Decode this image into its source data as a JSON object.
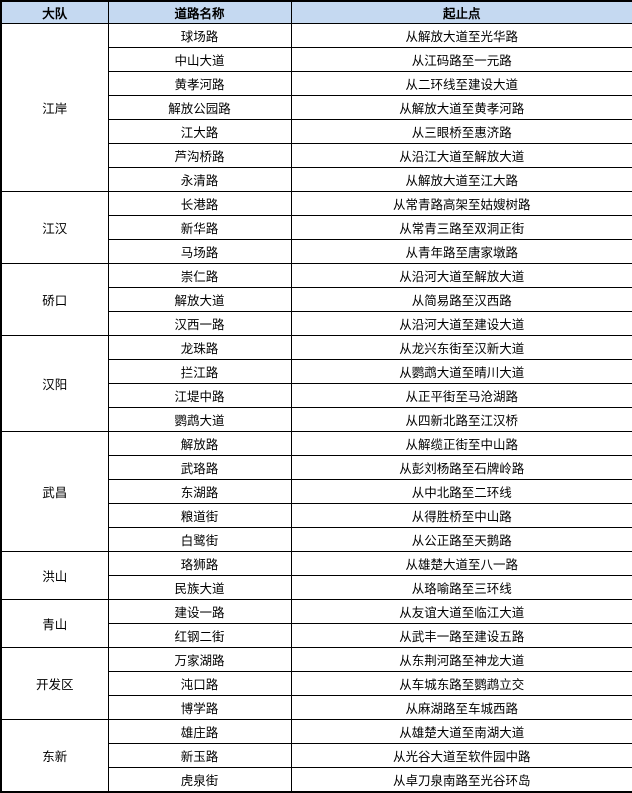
{
  "table": {
    "headers": [
      "大队",
      "道路名称",
      "起止点"
    ],
    "header_bg": "#c5d9f1",
    "groups": [
      {
        "brigade": "江岸",
        "rows": [
          {
            "road": "球场路",
            "range": "从解放大道至光华路"
          },
          {
            "road": "中山大道",
            "range": "从江码路至一元路"
          },
          {
            "road": "黄孝河路",
            "range": "从二环线至建设大道"
          },
          {
            "road": "解放公园路",
            "range": "从解放大道至黄孝河路"
          },
          {
            "road": "江大路",
            "range": "从三眼桥至惠济路"
          },
          {
            "road": "芦沟桥路",
            "range": "从沿江大道至解放大道"
          },
          {
            "road": "永清路",
            "range": "从解放大道至江大路"
          }
        ]
      },
      {
        "brigade": "江汉",
        "rows": [
          {
            "road": "长港路",
            "range": "从常青路高架至姑嫂树路"
          },
          {
            "road": "新华路",
            "range": "从常青三路至双洞正街"
          },
          {
            "road": "马场路",
            "range": "从青年路至唐家墩路"
          }
        ]
      },
      {
        "brigade": "硚口",
        "rows": [
          {
            "road": "崇仁路",
            "range": "从沿河大道至解放大道"
          },
          {
            "road": "解放大道",
            "range": "从简易路至汉西路"
          },
          {
            "road": "汉西一路",
            "range": "从沿河大道至建设大道"
          }
        ]
      },
      {
        "brigade": "汉阳",
        "rows": [
          {
            "road": "龙珠路",
            "range": "从龙兴东街至汉新大道"
          },
          {
            "road": "拦江路",
            "range": "从鹦鹉大道至晴川大道"
          },
          {
            "road": "江堤中路",
            "range": "从正平街至马沧湖路"
          },
          {
            "road": "鹦鹉大道",
            "range": "从四新北路至江汉桥"
          }
        ]
      },
      {
        "brigade": "武昌",
        "rows": [
          {
            "road": "解放路",
            "range": "从解缆正街至中山路"
          },
          {
            "road": "武珞路",
            "range": "从彭刘杨路至石牌岭路"
          },
          {
            "road": "东湖路",
            "range": "从中北路至二环线"
          },
          {
            "road": "粮道街",
            "range": "从得胜桥至中山路"
          },
          {
            "road": "白鹭街",
            "range": "从公正路至天鹅路"
          }
        ]
      },
      {
        "brigade": "洪山",
        "rows": [
          {
            "road": "珞狮路",
            "range": "从雄楚大道至八一路"
          },
          {
            "road": "民族大道",
            "range": "从珞喻路至三环线"
          }
        ]
      },
      {
        "brigade": "青山",
        "rows": [
          {
            "road": "建设一路",
            "range": "从友谊大道至临江大道"
          },
          {
            "road": "红钢二街",
            "range": "从武丰一路至建设五路"
          }
        ]
      },
      {
        "brigade": "开发区",
        "rows": [
          {
            "road": "万家湖路",
            "range": "从东荆河路至神龙大道"
          },
          {
            "road": "沌口路",
            "range": "从车城东路至鹦鹉立交"
          },
          {
            "road": "博学路",
            "range": "从麻湖路至车城西路"
          }
        ]
      },
      {
        "brigade": "东新",
        "rows": [
          {
            "road": "雄庄路",
            "range": "从雄楚大道至南湖大道"
          },
          {
            "road": "新玉路",
            "range": "从光谷大道至软件园中路"
          },
          {
            "road": "虎泉街",
            "range": "从卓刀泉南路至光谷环岛"
          }
        ]
      }
    ]
  }
}
